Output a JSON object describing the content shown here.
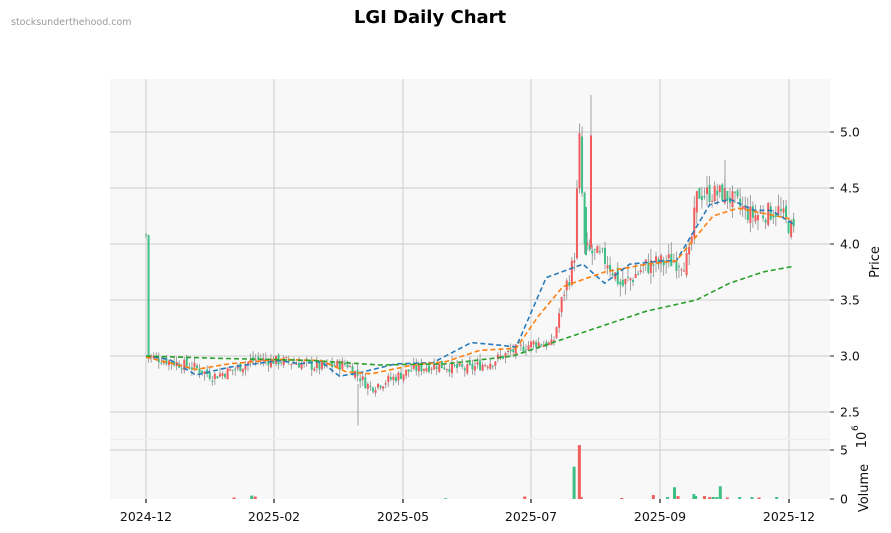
{
  "watermark": "stocksunderthehood.com",
  "title": "LGI Daily Chart",
  "colors": {
    "up": "#f25c5c",
    "down": "#3dbf85",
    "wick": "#8c8c8c",
    "ma_short": "#2a7ab8",
    "ma_mid": "#ff7f0e",
    "ma_long": "#2ca02c",
    "panel_bg": "#f8f8f8",
    "grid": "#cccccc"
  },
  "chart_data": {
    "type": "candlestick",
    "title": "LGI Daily Chart",
    "xlabel": "",
    "ylabel": "Price",
    "ylim": [
      2.25,
      5.45
    ],
    "yticks": [
      2.5,
      3.0,
      3.5,
      4.0,
      4.5,
      5.0
    ],
    "ytick_labels": [
      "2.5",
      "3.0",
      "3.5",
      "4.0",
      "4.5",
      "5.0"
    ],
    "xticks": [
      "2024-12",
      "2025-02",
      "2025-05",
      "2025-07",
      "2025-09",
      "2025-12"
    ],
    "grid": true,
    "close_keypoints": [
      [
        "2024-12-02",
        3.0
      ],
      [
        "2024-12-15",
        2.95
      ],
      [
        "2024-12-28",
        2.9
      ],
      [
        "2025-01-08",
        2.82
      ],
      [
        "2025-01-20",
        2.88
      ],
      [
        "2025-02-01",
        2.97
      ],
      [
        "2025-02-20",
        2.95
      ],
      [
        "2025-03-10",
        2.9
      ],
      [
        "2025-03-25",
        2.93
      ],
      [
        "2025-04-07",
        2.72
      ],
      [
        "2025-04-20",
        2.8
      ],
      [
        "2025-05-01",
        2.88
      ],
      [
        "2025-05-15",
        2.92
      ],
      [
        "2025-06-01",
        2.88
      ],
      [
        "2025-06-15",
        2.95
      ],
      [
        "2025-06-28",
        3.05
      ],
      [
        "2025-07-10",
        3.12
      ],
      [
        "2025-07-20",
        3.1
      ],
      [
        "2025-07-25",
        3.5
      ],
      [
        "2025-08-01",
        3.85
      ],
      [
        "2025-08-04",
        4.95
      ],
      [
        "2025-08-07",
        3.95
      ],
      [
        "2025-08-20",
        3.85
      ],
      [
        "2025-08-28",
        3.62
      ],
      [
        "2025-09-10",
        3.8
      ],
      [
        "2025-09-25",
        3.85
      ],
      [
        "2025-10-05",
        3.85
      ],
      [
        "2025-10-10",
        4.45
      ],
      [
        "2025-10-25",
        4.45
      ],
      [
        "2025-11-10",
        4.25
      ],
      [
        "2025-11-25",
        4.3
      ],
      [
        "2025-12-05",
        4.08
      ]
    ],
    "series": [
      {
        "name": "MA short",
        "style": "dashed",
        "values": [
          [
            0,
            3.0
          ],
          [
            14,
            2.97
          ],
          [
            30,
            2.83
          ],
          [
            50,
            2.9
          ],
          [
            80,
            2.96
          ],
          [
            92,
            2.93
          ],
          [
            105,
            2.95
          ],
          [
            116,
            2.82
          ],
          [
            128,
            2.85
          ],
          [
            150,
            2.93
          ],
          [
            172,
            2.94
          ],
          [
            195,
            3.12
          ],
          [
            210,
            3.1
          ],
          [
            222,
            3.08
          ],
          [
            240,
            3.7
          ],
          [
            262,
            3.82
          ],
          [
            275,
            3.65
          ],
          [
            290,
            3.82
          ],
          [
            310,
            3.85
          ],
          [
            318,
            3.85
          ],
          [
            338,
            4.35
          ],
          [
            350,
            4.4
          ],
          [
            365,
            4.3
          ],
          [
            375,
            4.3
          ],
          [
            388,
            4.18
          ]
        ]
      },
      {
        "name": "MA mid",
        "style": "dashed",
        "values": [
          [
            0,
            2.99
          ],
          [
            30,
            2.88
          ],
          [
            50,
            2.93
          ],
          [
            80,
            2.97
          ],
          [
            105,
            2.96
          ],
          [
            120,
            2.86
          ],
          [
            135,
            2.84
          ],
          [
            160,
            2.92
          ],
          [
            180,
            2.95
          ],
          [
            200,
            3.05
          ],
          [
            222,
            3.07
          ],
          [
            235,
            3.35
          ],
          [
            250,
            3.62
          ],
          [
            275,
            3.75
          ],
          [
            300,
            3.82
          ],
          [
            318,
            3.85
          ],
          [
            340,
            4.25
          ],
          [
            355,
            4.32
          ],
          [
            375,
            4.26
          ],
          [
            388,
            4.22
          ]
        ]
      },
      {
        "name": "MA long",
        "style": "dashed",
        "values": [
          [
            0,
            3.0
          ],
          [
            40,
            2.98
          ],
          [
            100,
            2.96
          ],
          [
            140,
            2.92
          ],
          [
            180,
            2.93
          ],
          [
            220,
            3.0
          ],
          [
            240,
            3.1
          ],
          [
            270,
            3.25
          ],
          [
            300,
            3.4
          ],
          [
            330,
            3.5
          ],
          [
            350,
            3.65
          ],
          [
            370,
            3.75
          ],
          [
            388,
            3.8
          ]
        ]
      }
    ],
    "volume": {
      "ylabel": "Volume",
      "scale_label": "10^6",
      "ylim": [
        0,
        6.2
      ],
      "yticks": [
        0,
        5
      ],
      "bars": [
        {
          "date": "2025-01-20",
          "value": 0.15,
          "dir": "up"
        },
        {
          "date": "2025-01-30",
          "value": 0.35,
          "dir": "down"
        },
        {
          "date": "2025-02-01",
          "value": 0.25,
          "dir": "up"
        },
        {
          "date": "2025-05-20",
          "value": 0.08,
          "dir": "down"
        },
        {
          "date": "2025-07-04",
          "value": 0.25,
          "dir": "up"
        },
        {
          "date": "2025-08-01",
          "value": 3.3,
          "dir": "down"
        },
        {
          "date": "2025-08-04",
          "value": 5.5,
          "dir": "up"
        },
        {
          "date": "2025-08-05",
          "value": 0.2,
          "dir": "up"
        },
        {
          "date": "2025-08-28",
          "value": 0.1,
          "dir": "up"
        },
        {
          "date": "2025-09-15",
          "value": 0.4,
          "dir": "up"
        },
        {
          "date": "2025-09-23",
          "value": 0.2,
          "dir": "down"
        },
        {
          "date": "2025-09-27",
          "value": 1.2,
          "dir": "down"
        },
        {
          "date": "2025-09-29",
          "value": 0.3,
          "dir": "up"
        },
        {
          "date": "2025-10-08",
          "value": 0.5,
          "dir": "down"
        },
        {
          "date": "2025-10-09",
          "value": 0.3,
          "dir": "down"
        },
        {
          "date": "2025-10-14",
          "value": 0.3,
          "dir": "up"
        },
        {
          "date": "2025-10-17",
          "value": 0.2,
          "dir": "up"
        },
        {
          "date": "2025-10-19",
          "value": 0.2,
          "dir": "down"
        },
        {
          "date": "2025-10-21",
          "value": 0.2,
          "dir": "down"
        },
        {
          "date": "2025-10-23",
          "value": 1.3,
          "dir": "down"
        },
        {
          "date": "2025-10-27",
          "value": 0.15,
          "dir": "up"
        },
        {
          "date": "2025-11-03",
          "value": 0.2,
          "dir": "down"
        },
        {
          "date": "2025-11-10",
          "value": 0.2,
          "dir": "down"
        },
        {
          "date": "2025-11-14",
          "value": 0.15,
          "dir": "up"
        },
        {
          "date": "2025-11-24",
          "value": 0.2,
          "dir": "down"
        }
      ]
    }
  }
}
